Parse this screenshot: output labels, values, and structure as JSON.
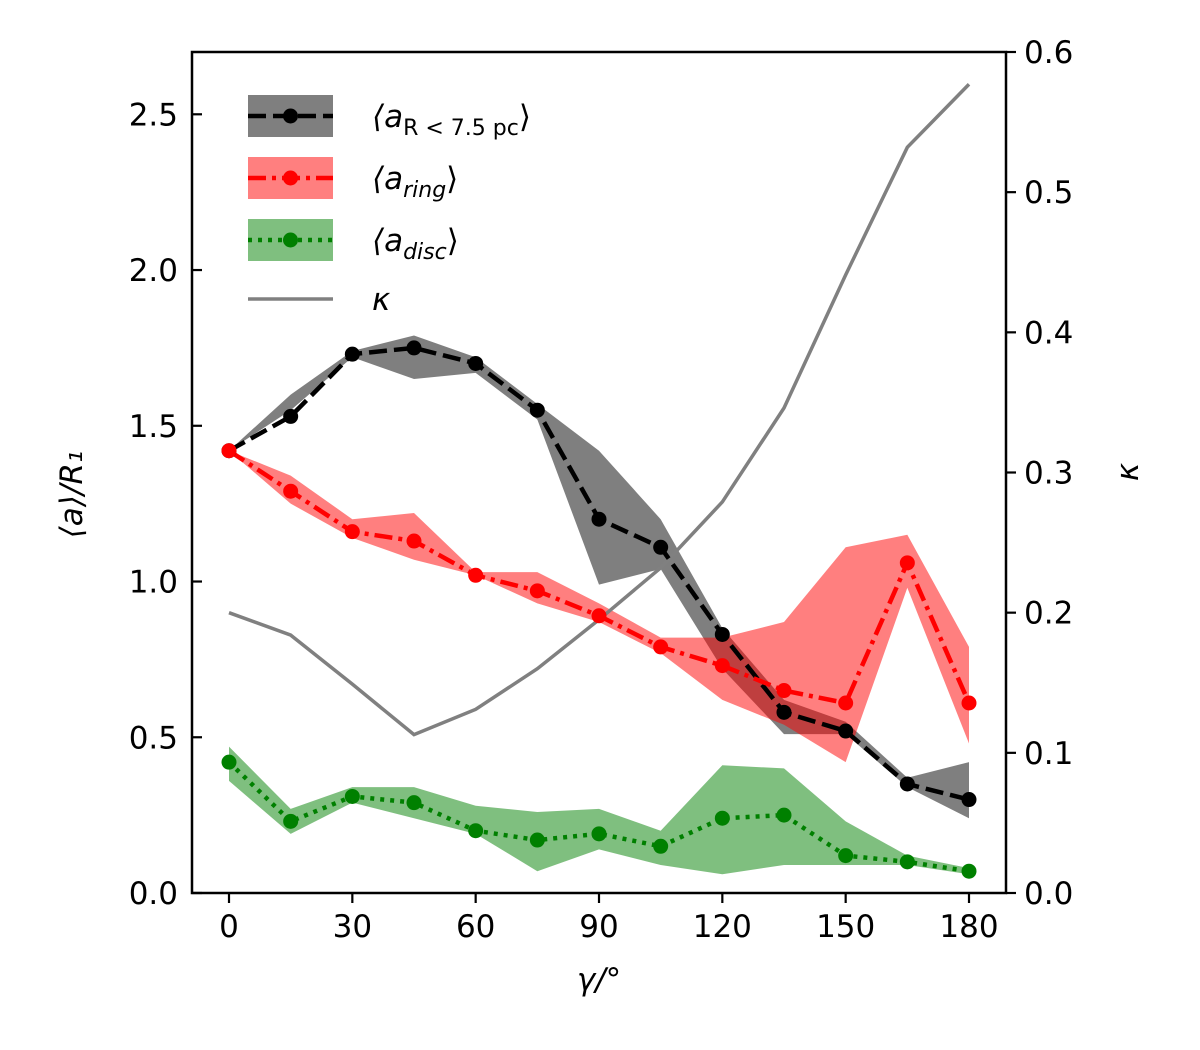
{
  "chart_data": {
    "type": "line",
    "title": "",
    "xlabel": "γ/°",
    "ylabel": "⟨a⟩/R₁",
    "ylabel_right": "κ",
    "x": [
      0,
      15,
      30,
      45,
      60,
      75,
      90,
      105,
      120,
      135,
      150,
      165,
      180
    ],
    "xlim": [
      -9,
      189
    ],
    "ylim": [
      0,
      2.7
    ],
    "ylim_right": [
      0,
      0.6
    ],
    "xticks": [
      "0",
      "30",
      "60",
      "90",
      "120",
      "150",
      "180"
    ],
    "xtick_values": [
      0,
      30,
      60,
      90,
      120,
      150,
      180
    ],
    "yticks": [
      "0.0",
      "0.5",
      "1.0",
      "1.5",
      "2.0",
      "2.5"
    ],
    "ytick_values": [
      0,
      0.5,
      1.0,
      1.5,
      2.0,
      2.5
    ],
    "yticks_right": [
      "0.0",
      "0.1",
      "0.2",
      "0.3",
      "0.4",
      "0.5",
      "0.6"
    ],
    "ytick_values_right": [
      0,
      0.1,
      0.2,
      0.3,
      0.4,
      0.5,
      0.6
    ],
    "series": [
      {
        "name": "⟨a_R<7.5pc⟩",
        "legend_main": "⟨a",
        "legend_sub": "R < 7.5 pc",
        "legend_close": "⟩",
        "color": "#000000",
        "band_color": "#808080",
        "style": "dashed",
        "axis": "left",
        "values": [
          1.42,
          1.53,
          1.73,
          1.75,
          1.7,
          1.55,
          1.2,
          1.11,
          0.83,
          0.58,
          0.52,
          0.35,
          0.3
        ],
        "lower": [
          1.42,
          1.55,
          1.72,
          1.65,
          1.67,
          1.52,
          0.99,
          1.04,
          0.72,
          0.51,
          0.51,
          0.34,
          0.24
        ],
        "upper": [
          1.42,
          1.6,
          1.74,
          1.79,
          1.72,
          1.57,
          1.42,
          1.2,
          0.85,
          0.62,
          0.55,
          0.37,
          0.42
        ]
      },
      {
        "name": "⟨a_ring⟩",
        "legend_main": "⟨a",
        "legend_sub": "ring",
        "legend_close": "⟩",
        "color": "#ff0000",
        "band_color": "#ff8080",
        "style": "dashdot",
        "axis": "left",
        "values": [
          1.42,
          1.29,
          1.16,
          1.13,
          1.02,
          0.97,
          0.89,
          0.79,
          0.73,
          0.65,
          0.61,
          1.06,
          0.61
        ],
        "lower": [
          1.42,
          1.25,
          1.14,
          1.07,
          1.02,
          0.93,
          0.87,
          0.77,
          0.62,
          0.54,
          0.42,
          0.98,
          0.48
        ],
        "upper": [
          1.42,
          1.34,
          1.2,
          1.22,
          1.03,
          1.03,
          0.93,
          0.82,
          0.82,
          0.87,
          1.11,
          1.15,
          0.79
        ]
      },
      {
        "name": "⟨a_disc⟩",
        "legend_main": "⟨a",
        "legend_sub": "disc",
        "legend_close": "⟩",
        "color": "#008000",
        "band_color": "#80bf80",
        "style": "dotted",
        "axis": "left",
        "values": [
          0.42,
          0.23,
          0.31,
          0.29,
          0.2,
          0.17,
          0.19,
          0.15,
          0.24,
          0.25,
          0.12,
          0.1,
          0.07
        ],
        "lower": [
          0.36,
          0.19,
          0.29,
          0.24,
          0.19,
          0.07,
          0.14,
          0.09,
          0.06,
          0.09,
          0.09,
          0.09,
          0.06
        ],
        "upper": [
          0.47,
          0.27,
          0.34,
          0.34,
          0.28,
          0.26,
          0.27,
          0.2,
          0.41,
          0.4,
          0.23,
          0.12,
          0.08
        ]
      }
    ],
    "kappa": {
      "name": "κ",
      "color": "#808080",
      "axis": "right",
      "values": [
        0.2,
        0.184,
        0.149,
        0.113,
        0.131,
        0.16,
        0.195,
        0.232,
        0.279,
        0.346,
        0.441,
        0.532,
        0.577
      ]
    },
    "legend_position": "upper-left",
    "grid": false
  }
}
